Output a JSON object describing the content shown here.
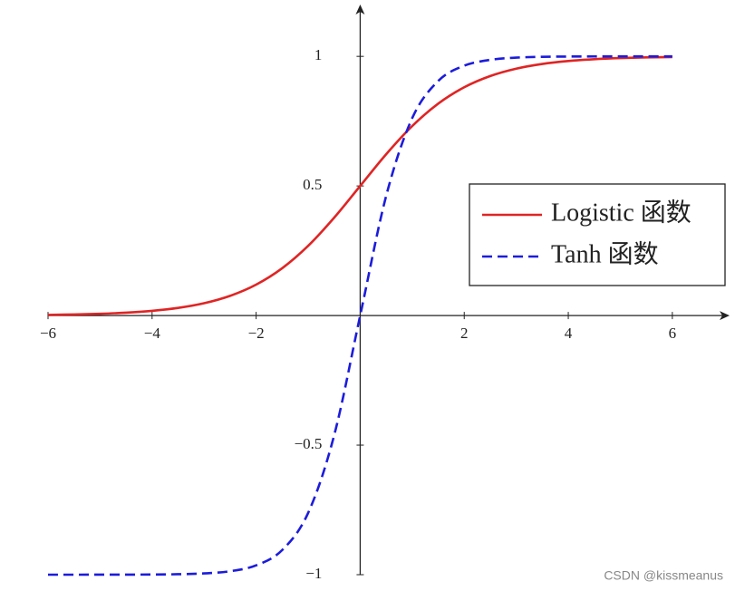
{
  "chart_data": {
    "type": "line",
    "x": [
      -6,
      -5.5,
      -5,
      -4.5,
      -4,
      -3.5,
      -3,
      -2.5,
      -2,
      -1.5,
      -1,
      -0.5,
      0,
      0.5,
      1,
      1.5,
      2,
      2.5,
      3,
      3.5,
      4,
      4.5,
      5,
      5.5,
      6
    ],
    "series": [
      {
        "name": "Logistic 函数",
        "color": "#e02424",
        "dash": false,
        "values": [
          0.0025,
          0.0041,
          0.0067,
          0.011,
          0.018,
          0.0293,
          0.0474,
          0.0759,
          0.1192,
          0.1824,
          0.2689,
          0.3775,
          0.5,
          0.6225,
          0.7311,
          0.8176,
          0.8808,
          0.9241,
          0.9526,
          0.9707,
          0.982,
          0.989,
          0.9933,
          0.9959,
          0.9975
        ]
      },
      {
        "name": "Tanh 函数",
        "color": "#1c1cdc",
        "dash": true,
        "values": [
          -1,
          -1,
          -0.9999,
          -0.9998,
          -0.9993,
          -0.9982,
          -0.9951,
          -0.9866,
          -0.964,
          -0.9051,
          -0.7616,
          -0.4621,
          0,
          0.4621,
          0.7616,
          0.9051,
          0.964,
          0.9866,
          0.9951,
          0.9982,
          0.9993,
          0.9998,
          0.9999,
          1,
          1
        ]
      }
    ],
    "xlim": [
      -6,
      7.1
    ],
    "ylim": [
      -1,
      1.2
    ],
    "xticks": [
      {
        "value": -6,
        "label": "−6"
      },
      {
        "value": -4,
        "label": "−4"
      },
      {
        "value": -2,
        "label": "−2"
      },
      2,
      4,
      6
    ],
    "yticks": [
      {
        "value": -1,
        "label": "−1"
      },
      {
        "value": -0.5,
        "label": "−0.5"
      },
      0.5,
      1
    ],
    "legend": "right",
    "watermark": "CSDN @kissmeanus"
  }
}
